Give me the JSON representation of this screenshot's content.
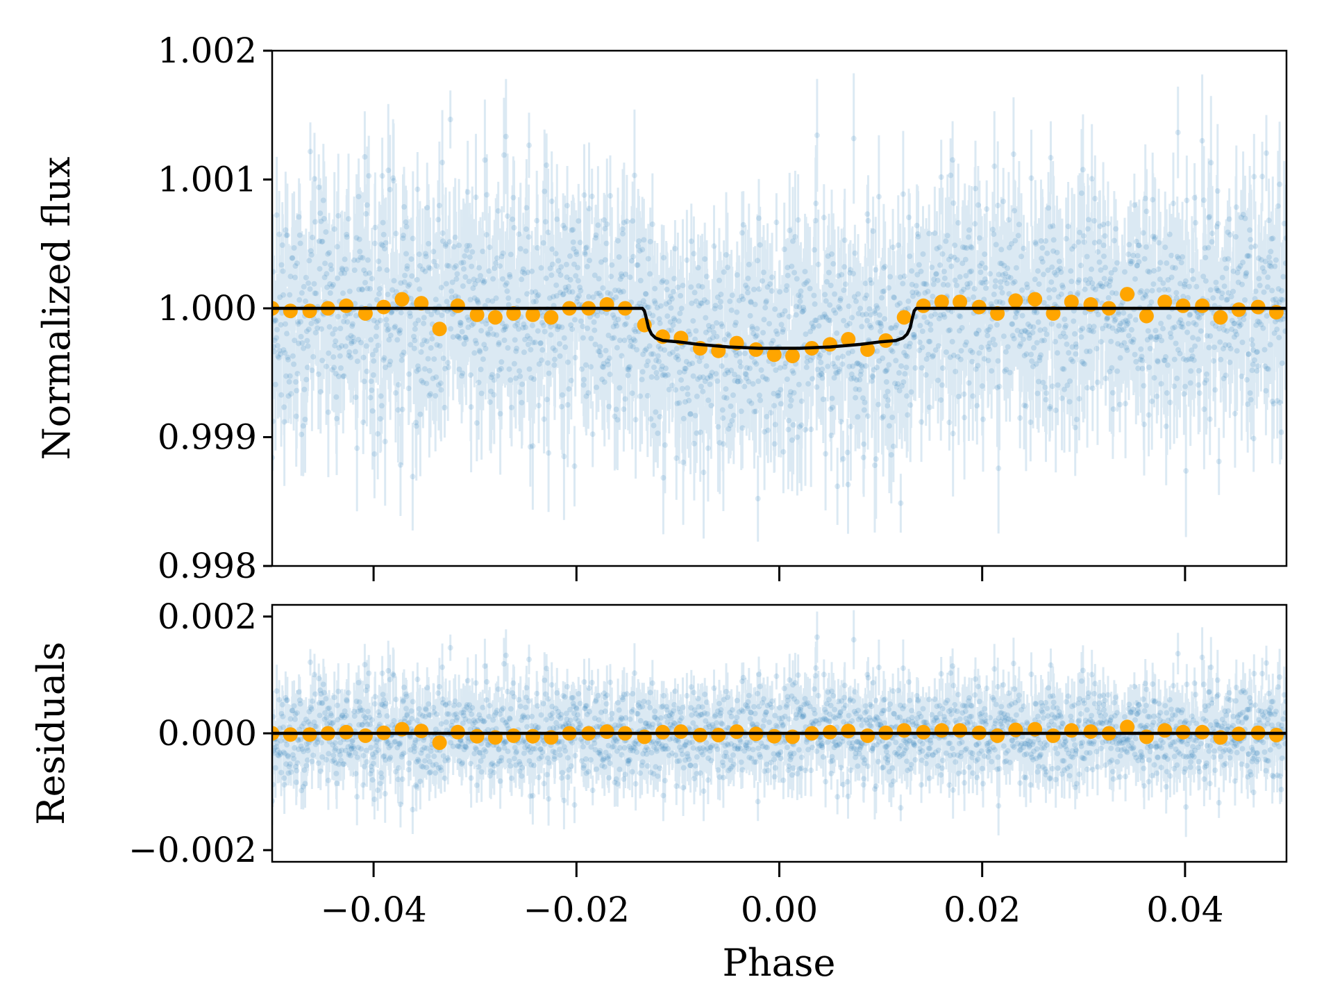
{
  "chart_data": [
    {
      "type": "scatter",
      "title": "",
      "xlabel": "",
      "ylabel": "Normalized flux",
      "xlim": [
        -0.05,
        0.05
      ],
      "ylim": [
        0.998,
        1.002
      ],
      "xticks": [
        -0.04,
        -0.02,
        0.0,
        0.02,
        0.04
      ],
      "yticks": [
        0.998,
        0.999,
        1.0,
        1.001,
        1.002
      ],
      "ytick_labels": [
        "0.998",
        "0.999",
        "1.000",
        "1.001",
        "1.002"
      ],
      "grid": false,
      "legend": "none",
      "raw_data": {
        "color": "#1f77b4",
        "n_points": 2500,
        "center": 1.0,
        "scatter_sigma": 0.00042,
        "typical_error": 0.00035
      },
      "model": {
        "color": "#000000",
        "x": [
          -0.05,
          -0.0135,
          -0.0133,
          -0.0131,
          -0.0129,
          -0.0126,
          -0.0122,
          -0.0115,
          -0.01,
          -0.008,
          -0.005,
          -0.002,
          0.0,
          0.002,
          0.005,
          0.008,
          0.01,
          0.0115,
          0.0122,
          0.0126,
          0.0129,
          0.0131,
          0.0133,
          0.0135,
          0.05
        ],
        "y": [
          1.0,
          1.0,
          0.99998,
          0.99992,
          0.99985,
          0.9998,
          0.99977,
          0.99975,
          0.99974,
          0.99972,
          0.9997,
          0.99969,
          0.99969,
          0.99969,
          0.9997,
          0.99972,
          0.99974,
          0.99975,
          0.99977,
          0.9998,
          0.99985,
          0.99992,
          0.99998,
          1.0,
          1.0
        ]
      },
      "binned": {
        "color": "#ffa500",
        "x": [
          -0.05,
          -0.0482,
          -0.0463,
          -0.0445,
          -0.0427,
          -0.0408,
          -0.039,
          -0.0372,
          -0.0353,
          -0.0335,
          -0.0317,
          -0.0298,
          -0.028,
          -0.0262,
          -0.0243,
          -0.0225,
          -0.0207,
          -0.0188,
          -0.017,
          -0.0152,
          -0.0133,
          -0.0115,
          -0.0097,
          -0.0078,
          -0.006,
          -0.0042,
          -0.0023,
          -0.0005,
          0.0013,
          0.0032,
          0.005,
          0.0068,
          0.0087,
          0.0105,
          0.0123,
          0.0142,
          0.016,
          0.0178,
          0.0197,
          0.0215,
          0.0233,
          0.0252,
          0.027,
          0.0288,
          0.0307,
          0.0325,
          0.0343,
          0.0362,
          0.038,
          0.0398,
          0.0417,
          0.0435,
          0.0453,
          0.0472,
          0.049
        ],
        "y": [
          1.0,
          0.99998,
          0.99998,
          1.0,
          1.00002,
          0.99996,
          1.00001,
          1.00007,
          1.00004,
          0.99984,
          1.00002,
          0.99995,
          0.99993,
          0.99996,
          0.99995,
          0.99993,
          1.0,
          1.0,
          1.00003,
          1.0,
          0.99987,
          0.99978,
          0.99977,
          0.99969,
          0.99967,
          0.99973,
          0.99968,
          0.99964,
          0.99963,
          0.99969,
          0.99972,
          0.99976,
          0.99968,
          0.99975,
          0.99993,
          1.00002,
          1.00005,
          1.00005,
          1.00001,
          0.99996,
          1.00006,
          1.00007,
          0.99996,
          1.00005,
          1.00003,
          1.0,
          1.00011,
          0.99994,
          1.00005,
          1.00002,
          1.00002,
          0.99993,
          0.99999,
          1.00001,
          0.99997
        ]
      }
    },
    {
      "type": "scatter",
      "title": "",
      "xlabel": "Phase",
      "ylabel": "Residuals",
      "xlim": [
        -0.05,
        0.05
      ],
      "ylim": [
        -0.0022,
        0.0022
      ],
      "xticks": [
        -0.04,
        -0.02,
        0.0,
        0.02,
        0.04
      ],
      "xtick_labels": [
        "−0.04",
        "−0.02",
        "0.00",
        "0.02",
        "0.04"
      ],
      "yticks": [
        -0.002,
        0.0,
        0.002
      ],
      "ytick_labels": [
        "−0.002",
        "0.000",
        "0.002"
      ],
      "grid": false,
      "legend": "none",
      "raw_data": {
        "color": "#1f77b4",
        "n_points": 2500,
        "center": 0.0,
        "scatter_sigma": 0.00042,
        "typical_error": 0.00035
      },
      "model": {
        "color": "#000000",
        "x": [
          -0.05,
          0.05
        ],
        "y": [
          0.0,
          0.0
        ]
      },
      "binned": {
        "color": "#ffa500",
        "x": [
          -0.05,
          -0.0482,
          -0.0463,
          -0.0445,
          -0.0427,
          -0.0408,
          -0.039,
          -0.0372,
          -0.0353,
          -0.0335,
          -0.0317,
          -0.0298,
          -0.028,
          -0.0262,
          -0.0243,
          -0.0225,
          -0.0207,
          -0.0188,
          -0.017,
          -0.0152,
          -0.0133,
          -0.0115,
          -0.0097,
          -0.0078,
          -0.006,
          -0.0042,
          -0.0023,
          -0.0005,
          0.0013,
          0.0032,
          0.005,
          0.0068,
          0.0087,
          0.0105,
          0.0123,
          0.0142,
          0.016,
          0.0178,
          0.0197,
          0.0215,
          0.0233,
          0.0252,
          0.027,
          0.0288,
          0.0307,
          0.0325,
          0.0343,
          0.0362,
          0.038,
          0.0398,
          0.0417,
          0.0435,
          0.0453,
          0.0472,
          0.049
        ],
        "y": [
          0.0,
          -2e-05,
          -2e-05,
          0.0,
          2e-05,
          -4e-05,
          1e-05,
          7e-05,
          4e-05,
          -0.00016,
          2e-05,
          -5e-05,
          -7e-05,
          -4e-05,
          -5e-05,
          -7e-05,
          0.0,
          0.0,
          3e-05,
          0.0,
          -6e-05,
          2e-05,
          3e-05,
          -3e-05,
          -3e-05,
          3e-05,
          -1e-05,
          -5e-05,
          -6e-05,
          0.0,
          2e-05,
          4e-05,
          -4e-05,
          1e-05,
          5e-05,
          2e-05,
          5e-05,
          5e-05,
          1e-05,
          -4e-05,
          6e-05,
          7e-05,
          -4e-05,
          5e-05,
          3e-05,
          0.0,
          0.00011,
          -6e-05,
          5e-05,
          2e-05,
          2e-05,
          -7e-05,
          -1e-05,
          1e-05,
          -3e-05
        ]
      }
    }
  ]
}
